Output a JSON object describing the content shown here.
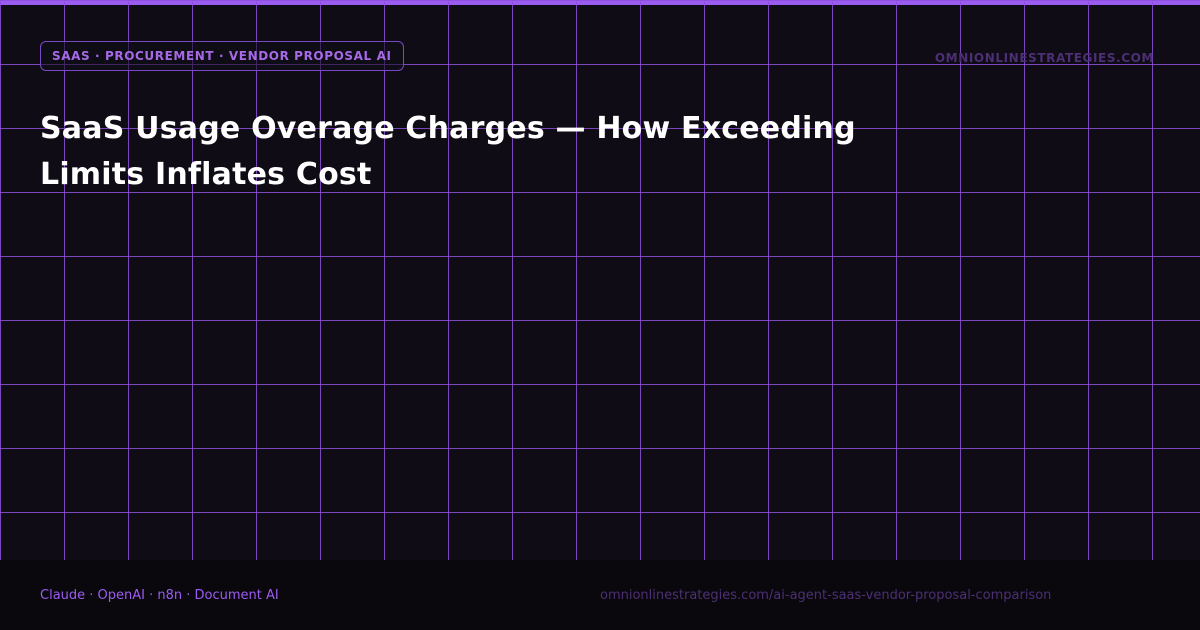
{
  "header": {
    "category_tag": "SAAS · PROCUREMENT · VENDOR PROPOSAL AI",
    "domain": "OMNIONLINESTRATEGIES.COM"
  },
  "main": {
    "title": "SaaS Usage Overage Charges — How Exceeding Limits Inflates Cost"
  },
  "footer": {
    "tech_stack": "Claude · OpenAI · n8n · Document AI",
    "url": "omnionlinestrategies.com/ai-agent-saas-vendor-proposal-comparison"
  },
  "colors": {
    "accent": "#9b5cf0",
    "background": "#0f0c15",
    "footer_background": "#0a080d",
    "muted": "#4c2f74"
  }
}
